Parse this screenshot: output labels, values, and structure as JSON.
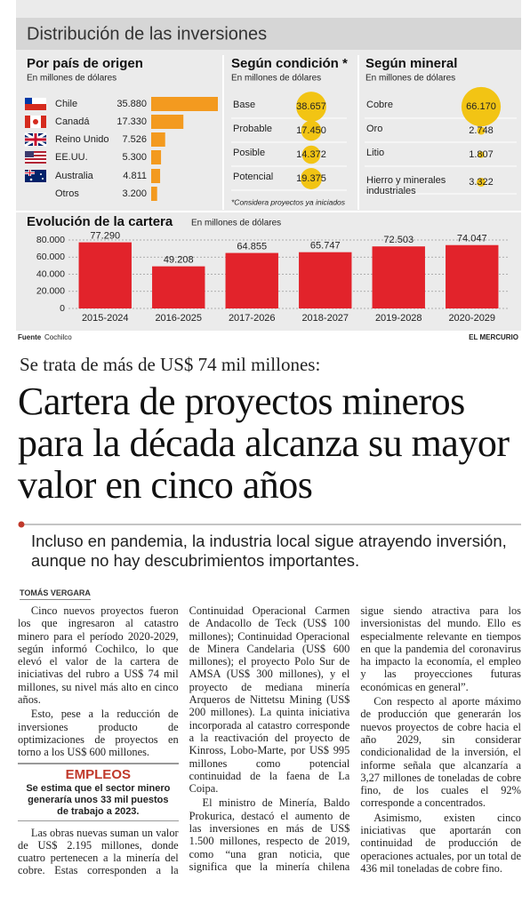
{
  "header": {
    "title": "Distribución de las inversiones"
  },
  "chart_data": [
    {
      "type": "hbar",
      "title": "Por país de origen",
      "subtitle": "En millones de dólares",
      "categories": [
        "Chile",
        "Canadá",
        "Reino Unido",
        "EE.UU.",
        "Australia",
        "Otros"
      ],
      "values": [
        35880,
        17330,
        7526,
        5300,
        4811,
        3200
      ],
      "value_labels": [
        "35.880",
        "17.330",
        "7.526",
        "5.300",
        "4.811",
        "3.200"
      ],
      "color": "#f39a1f"
    },
    {
      "type": "bubble",
      "title": "Según condición *",
      "subtitle": "En millones de dólares",
      "categories": [
        "Base",
        "Probable",
        "Posible",
        "Potencial"
      ],
      "values": [
        38657,
        17450,
        14372,
        19375
      ],
      "value_labels": [
        "38.657",
        "17.450",
        "14.372",
        "19.375"
      ],
      "color": "#f2c414",
      "note": "*Considera proyectos ya iniciados"
    },
    {
      "type": "bubble",
      "title": "Según mineral",
      "subtitle": "En millones de dólares",
      "categories": [
        "Cobre",
        "Oro",
        "Litio",
        "Hierro y minerales industriales"
      ],
      "values": [
        66170,
        2748,
        1807,
        3322
      ],
      "value_labels": [
        "66.170",
        "2.748",
        "1.807",
        "3.322"
      ],
      "color": "#f2c414"
    },
    {
      "type": "bar",
      "title": "Evolución de la cartera",
      "subtitle": "En millones de dólares",
      "categories": [
        "2015-2024",
        "2016-2025",
        "2017-2026",
        "2018-2027",
        "2019-2028",
        "2020-2029"
      ],
      "values": [
        77290,
        49208,
        64855,
        65747,
        72503,
        74047
      ],
      "value_labels": [
        "77.290",
        "49.208",
        "64.855",
        "65.747",
        "72.503",
        "74.047"
      ],
      "color": "#e2232b",
      "ylim": [
        0,
        80000
      ],
      "yticks": [
        0,
        {
          "value": 20000,
          "label": "20.000"
        },
        {
          "value": 40000,
          "label": "40.000"
        },
        {
          "value": 60000,
          "label": "60.000"
        },
        {
          "value": 80000,
          "label": "80.000"
        }
      ],
      "grid": true
    }
  ],
  "source": {
    "label": "Fuente",
    "text": "Cochilco"
  },
  "publisher": "EL MERCURIO",
  "article": {
    "kicker": "Se trata de más de US$ 74 mil millones:",
    "headline": "Cartera de proyectos mineros para la década alcanza su mayor valor en cinco años",
    "deck": "Incluso en pandemia, la industria local sigue atrayendo inversión, aunque no hay descubrimientos importantes.",
    "byline": "TOMÁS VERGARA",
    "paragraphs": [
      "Cinco nuevos proyectos fueron los que ingresaron al catastro minero para el período 2020-2029, según informó Cochilco, lo que elevó el valor de la cartera de iniciativas del rubro a US$ 74 mil millones, su nivel más alto en cinco años.",
      "Esto, pese a la reducción de inversiones producto de optimizaciones de proyectos en torno a los US$ 600 millones.",
      "Las obras nuevas suman un valor de US$ 2.195 millones, donde cuatro pertenecen a la minería del cobre. Estas corresponden a la Continuidad Operacional Carmen de Andacollo de Teck (US$ 100 millones); Continuidad Operacional de Minera Candelaria (US$ 600 millones); el proyecto Polo Sur de AMSA (US$ 300 millones), y el proyecto de mediana minería Arqueros de Nittetsu Mining (US$ 200 millones). La quinta iniciativa incorporada al catastro corresponde a la reactivación del proyecto de Kinross, Lobo-Marte, por US$ 995 millones como potencial continuidad de la faena de La Coipa.",
      "El ministro de Minería, Baldo Prokurica, destacó el aumento de las inversiones en más de US$ 1.500 millones, respecto de 2019, como “una gran noticia, que significa que la minería chilena sigue siendo atractiva para los inversionistas del mundo. Ello es especialmente relevante en tiempos en que la pandemia del coronavirus ha impacto la economía, el empleo y las proyecciones futuras económicas en general”.",
      "Con respecto al aporte máximo de producción que generarán los nuevos proyectos de cobre hacia el año 2029, sin considerar condicionalidad de la inversión, el informe señala que alcanzaría a 3,27 millones de toneladas de cobre fino, de los cuales el 92% corresponde a concentrados.",
      "Asimismo, existen cinco iniciativas que aportarán con continuidad de producción de operaciones actuales, por un total de 436 mil toneladas de cobre fino."
    ],
    "sidebar": {
      "title": "EMPLEOS",
      "text": "Se estima que el sector minero generaría unos 33 mil puestos de trabajo a 2023."
    }
  }
}
